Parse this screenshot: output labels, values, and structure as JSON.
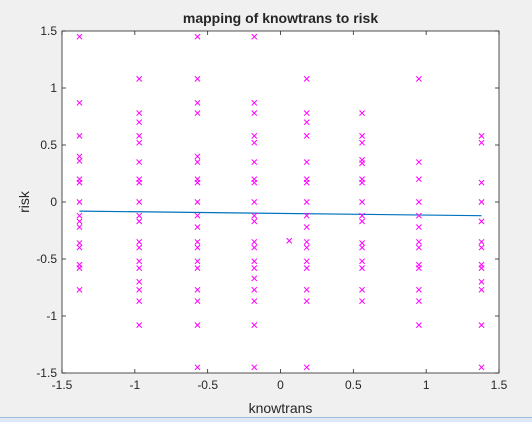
{
  "chart_data": {
    "type": "scatter",
    "title": "mapping of knowtrans to risk",
    "xlabel": "knowtrans",
    "ylabel": "risk",
    "xlim": [
      -1.5,
      1.5
    ],
    "ylim": [
      -1.5,
      1.5
    ],
    "xticks": [
      -1.5,
      -1,
      -0.5,
      0,
      0.5,
      1,
      1.5
    ],
    "yticks": [
      -1.5,
      -1,
      -0.5,
      0,
      0.5,
      1,
      1.5
    ],
    "xtick_labels": [
      "-1.5",
      "-1",
      "-0.5",
      "0",
      "0.5",
      "1",
      "1.5"
    ],
    "ytick_labels": [
      "-1.5",
      "-1",
      "-0.5",
      "0",
      "0.5",
      "1",
      "1.5"
    ],
    "grid": false,
    "marker_color": "#ff00ff",
    "line_color": "#0072bd",
    "columns": [
      {
        "x": -1.38,
        "y": [
          1.45,
          0.87,
          0.58,
          0.4,
          0.36,
          0.2,
          0.17,
          0.0,
          -0.12,
          -0.17,
          -0.22,
          -0.36,
          -0.4,
          -0.55,
          -0.58,
          -0.77
        ]
      },
      {
        "x": -0.97,
        "y": [
          1.08,
          0.78,
          0.7,
          0.58,
          0.52,
          0.35,
          0.2,
          0.17,
          0.0,
          -0.12,
          -0.17,
          -0.35,
          -0.4,
          -0.52,
          -0.58,
          -0.7,
          -0.77,
          -0.87,
          -1.08
        ]
      },
      {
        "x": -0.57,
        "y": [
          1.45,
          1.08,
          0.87,
          0.78,
          0.4,
          0.35,
          0.2,
          0.17,
          0.0,
          -0.12,
          -0.22,
          -0.35,
          -0.4,
          -0.52,
          -0.58,
          -0.77,
          -0.87,
          -1.08,
          -1.45
        ]
      },
      {
        "x": -0.18,
        "y": [
          1.45,
          0.87,
          0.78,
          0.58,
          0.52,
          0.35,
          0.2,
          0.17,
          0.0,
          -0.12,
          -0.17,
          -0.35,
          -0.4,
          -0.52,
          -0.58,
          -0.67,
          -0.77,
          -0.87,
          -1.08,
          -1.45
        ]
      },
      {
        "x": 0.06,
        "y": [
          -0.34
        ]
      },
      {
        "x": 0.18,
        "y": [
          1.08,
          0.78,
          0.7,
          0.58,
          0.35,
          0.2,
          0.17,
          0.0,
          -0.12,
          -0.22,
          -0.35,
          -0.4,
          -0.52,
          -0.58,
          -0.77,
          -0.87,
          -1.45
        ]
      },
      {
        "x": 0.56,
        "y": [
          0.78,
          0.58,
          0.52,
          0.37,
          0.34,
          0.2,
          0.17,
          0.0,
          -0.12,
          -0.17,
          -0.36,
          -0.4,
          -0.52,
          -0.58,
          -0.77,
          -0.87
        ]
      },
      {
        "x": 0.95,
        "y": [
          1.08,
          0.35,
          0.2,
          0.0,
          -0.12,
          -0.22,
          -0.35,
          -0.4,
          -0.55,
          -0.58,
          -0.77,
          -0.87,
          -1.08
        ]
      },
      {
        "x": 1.38,
        "y": [
          0.58,
          0.52,
          0.17,
          0.0,
          -0.17,
          -0.35,
          -0.4,
          -0.55,
          -0.58,
          -0.7,
          -0.77,
          -1.08,
          -1.45
        ]
      }
    ],
    "fit_line": {
      "x": [
        -1.38,
        1.38
      ],
      "y": [
        -0.08,
        -0.12
      ]
    }
  }
}
